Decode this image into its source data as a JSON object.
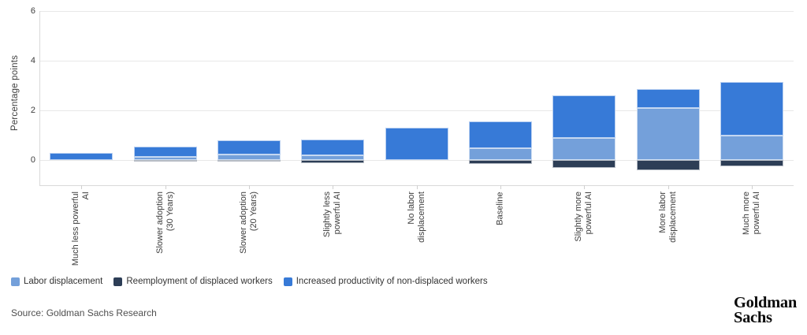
{
  "chart_data": {
    "type": "bar",
    "stacked": true,
    "title": "",
    "xlabel": "",
    "ylabel": "Percentage points",
    "ylim": [
      -1,
      6
    ],
    "yticks": [
      0,
      2,
      4,
      6
    ],
    "grid": true,
    "legend_position": "bottom-left",
    "categories": [
      "Much less powerful\nAI",
      "Slower adoption\n(30 Years)",
      "Slower adoption\n(20 Years)",
      "Slightly less\npowerful AI",
      "No labor\ndisplacement",
      "Baseline",
      "Slightly more\npowerful AI",
      "More labor\ndisplacement",
      "Much more\npowerful AI"
    ],
    "series": [
      {
        "name": "Labor displacement",
        "color": "#74a0da",
        "values": [
          0,
          0.15,
          0.25,
          0.2,
          0,
          0.5,
          0.9,
          2.1,
          1.0
        ]
      },
      {
        "name": "Reemployment of displaced workers",
        "color": "#2d3e56",
        "values": [
          0,
          -0.05,
          -0.05,
          -0.1,
          0,
          -0.15,
          -0.3,
          -0.4,
          -0.25
        ]
      },
      {
        "name": "Increased productivity of non-displaced workers",
        "color": "#377ad7",
        "values": [
          0.3,
          0.4,
          0.55,
          0.65,
          1.3,
          1.05,
          1.7,
          0.75,
          2.15
        ]
      }
    ]
  },
  "footer": {
    "source": "Source: Goldman Sachs Research"
  },
  "brand": {
    "line1": "Goldman",
    "line2": "Sachs"
  }
}
